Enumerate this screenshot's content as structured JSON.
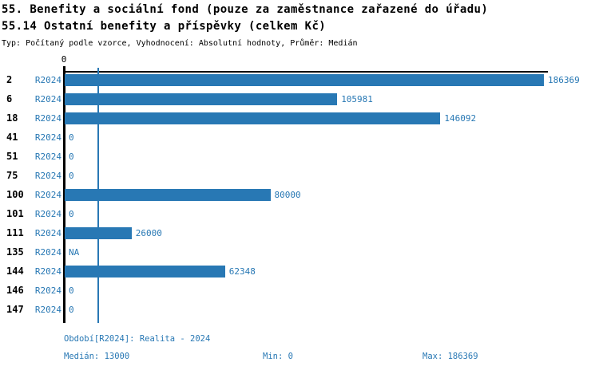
{
  "title": {
    "line1": "55. Benefity a sociální fond (pouze za zaměstnance zařazené do úřadu)",
    "line2": "55.14 Ostatní benefity a příspěvky (celkem Kč)",
    "subtitle": "Typ: Počítaný podle vzorce, Vyhodnocení: Absolutní hodnoty, Průměr: Medián"
  },
  "chart_data": {
    "type": "bar",
    "orientation": "horizontal",
    "title": "55.14 Ostatní benefity a příspěvky (celkem Kč)",
    "categories": [
      "2",
      "6",
      "18",
      "41",
      "51",
      "75",
      "100",
      "101",
      "111",
      "135",
      "144",
      "146",
      "147"
    ],
    "series": [
      {
        "name": "R2024",
        "values": [
          186369,
          105981,
          146092,
          0,
          0,
          0,
          80000,
          0,
          26000,
          null,
          62348,
          0,
          0
        ]
      }
    ],
    "value_labels": [
      "186369",
      "105981",
      "146092",
      "0",
      "0",
      "0",
      "80000",
      "0",
      "26000",
      "NA",
      "62348",
      "0",
      "0"
    ],
    "na_label": "NA",
    "xlim": [
      0,
      186369
    ],
    "axis_zero_label": "0",
    "annotations": {
      "median_line_value": 13000
    },
    "legend_position": "none",
    "grid": false,
    "colors": {
      "bar": "#2878b4",
      "median_line": "#2878b4",
      "label_text": "#2878b4",
      "axis": "#000000"
    }
  },
  "footer": {
    "period": "Období[R2024]: Realita - 2024",
    "median": "Medián: 13000",
    "min": "Min: 0",
    "max": "Max: 186369"
  }
}
